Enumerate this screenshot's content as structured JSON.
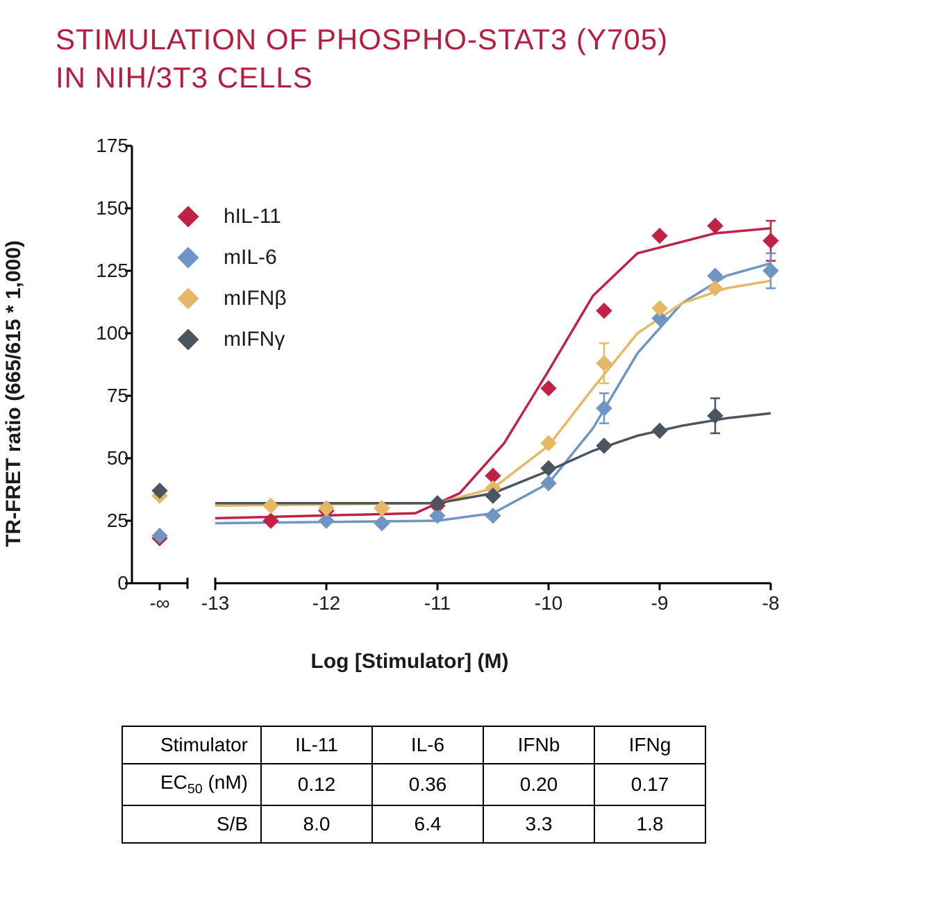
{
  "title_line1": "STIMULATION OF PHOSPHO-STAT3 (Y705)",
  "title_line2": "IN NIH/3T3 CELLS",
  "title_color": "#b71c3f",
  "chart": {
    "type": "scatter-line",
    "y_label": "TR-FRET ratio (665/615 * 1,000)",
    "x_label": "Log [Stimulator] (M)",
    "ylim": [
      0,
      175
    ],
    "y_ticks": [
      0,
      25,
      50,
      75,
      100,
      125,
      150,
      175
    ],
    "xlim": [
      -13,
      -8
    ],
    "x_ticks": [
      "-∞",
      "-13",
      "-12",
      "-11",
      "-10",
      "-9",
      "-8"
    ],
    "x_tick_positions": [
      -14,
      -13,
      -12,
      -11,
      -10,
      -9,
      -8
    ],
    "x_axis_break_after": -14,
    "tick_fontsize": 28,
    "label_fontsize": 30,
    "background_color": "#ffffff",
    "axis_color": "#000000",
    "axis_width": 3,
    "marker_style": "diamond",
    "marker_size": 22,
    "line_width": 3.5,
    "series": [
      {
        "name": "hIL-11",
        "color": "#c02145",
        "points": [
          {
            "x": -14,
            "y": 18
          },
          {
            "x": -12.5,
            "y": 25
          },
          {
            "x": -12,
            "y": 29
          },
          {
            "x": -11.5,
            "y": 30
          },
          {
            "x": -11,
            "y": 31
          },
          {
            "x": -10.5,
            "y": 43
          },
          {
            "x": -10,
            "y": 78
          },
          {
            "x": -9.5,
            "y": 109
          },
          {
            "x": -9,
            "y": 139
          },
          {
            "x": -8.5,
            "y": 143
          },
          {
            "x": -8,
            "y": 137,
            "err": 8
          }
        ],
        "curve": [
          {
            "x": -13,
            "y": 26
          },
          {
            "x": -11.2,
            "y": 28
          },
          {
            "x": -10.8,
            "y": 36
          },
          {
            "x": -10.4,
            "y": 56
          },
          {
            "x": -10,
            "y": 85
          },
          {
            "x": -9.6,
            "y": 115
          },
          {
            "x": -9.2,
            "y": 132
          },
          {
            "x": -8.5,
            "y": 140
          },
          {
            "x": -8,
            "y": 142
          }
        ]
      },
      {
        "name": "mIL-6",
        "color": "#6e95c4",
        "points": [
          {
            "x": -14,
            "y": 19
          },
          {
            "x": -12,
            "y": 25
          },
          {
            "x": -11.5,
            "y": 24
          },
          {
            "x": -11,
            "y": 27
          },
          {
            "x": -10.5,
            "y": 27
          },
          {
            "x": -10,
            "y": 40
          },
          {
            "x": -9.5,
            "y": 70,
            "err": 6
          },
          {
            "x": -9,
            "y": 106
          },
          {
            "x": -8.5,
            "y": 123
          },
          {
            "x": -8,
            "y": 125,
            "err": 7
          }
        ],
        "curve": [
          {
            "x": -13,
            "y": 24
          },
          {
            "x": -11,
            "y": 25
          },
          {
            "x": -10.5,
            "y": 28
          },
          {
            "x": -10,
            "y": 40
          },
          {
            "x": -9.6,
            "y": 62
          },
          {
            "x": -9.2,
            "y": 92
          },
          {
            "x": -8.8,
            "y": 112
          },
          {
            "x": -8.4,
            "y": 123
          },
          {
            "x": -8,
            "y": 128
          }
        ]
      },
      {
        "name": "mIFNβ",
        "color": "#e6b866",
        "points": [
          {
            "x": -14,
            "y": 35
          },
          {
            "x": -12.5,
            "y": 31
          },
          {
            "x": -12,
            "y": 30
          },
          {
            "x": -11.5,
            "y": 30
          },
          {
            "x": -11,
            "y": 32
          },
          {
            "x": -10.5,
            "y": 38
          },
          {
            "x": -10,
            "y": 56
          },
          {
            "x": -9.5,
            "y": 88,
            "err": 8
          },
          {
            "x": -9,
            "y": 110
          },
          {
            "x": -8.5,
            "y": 118
          }
        ],
        "curve": [
          {
            "x": -13,
            "y": 31
          },
          {
            "x": -11,
            "y": 32
          },
          {
            "x": -10.5,
            "y": 38
          },
          {
            "x": -10,
            "y": 55
          },
          {
            "x": -9.6,
            "y": 78
          },
          {
            "x": -9.2,
            "y": 100
          },
          {
            "x": -8.8,
            "y": 112
          },
          {
            "x": -8.4,
            "y": 118
          },
          {
            "x": -8,
            "y": 121
          }
        ]
      },
      {
        "name": "mIFNγ",
        "color": "#4a5560",
        "points": [
          {
            "x": -14,
            "y": 37
          },
          {
            "x": -11,
            "y": 32
          },
          {
            "x": -10.5,
            "y": 35
          },
          {
            "x": -10,
            "y": 46
          },
          {
            "x": -9.5,
            "y": 55
          },
          {
            "x": -9,
            "y": 61
          },
          {
            "x": -8.5,
            "y": 67,
            "err": 7
          }
        ],
        "curve": [
          {
            "x": -13,
            "y": 32
          },
          {
            "x": -11,
            "y": 32
          },
          {
            "x": -10.5,
            "y": 36
          },
          {
            "x": -10,
            "y": 45
          },
          {
            "x": -9.6,
            "y": 53
          },
          {
            "x": -9.2,
            "y": 59
          },
          {
            "x": -8.8,
            "y": 63
          },
          {
            "x": -8.4,
            "y": 66
          },
          {
            "x": -8,
            "y": 68
          }
        ]
      }
    ]
  },
  "table": {
    "columns": [
      "Stimulator",
      "IL-11",
      "IL-6",
      "IFNb",
      "IFNg"
    ],
    "rows": [
      {
        "label": "EC50 (nM)",
        "label_has_sub": true,
        "values": [
          "0.12",
          "0.36",
          "0.20",
          "0.17"
        ]
      },
      {
        "label": "S/B",
        "label_has_sub": false,
        "values": [
          "8.0",
          "6.4",
          "3.3",
          "1.8"
        ]
      }
    ],
    "border_color": "#000000",
    "fontsize": 28
  }
}
